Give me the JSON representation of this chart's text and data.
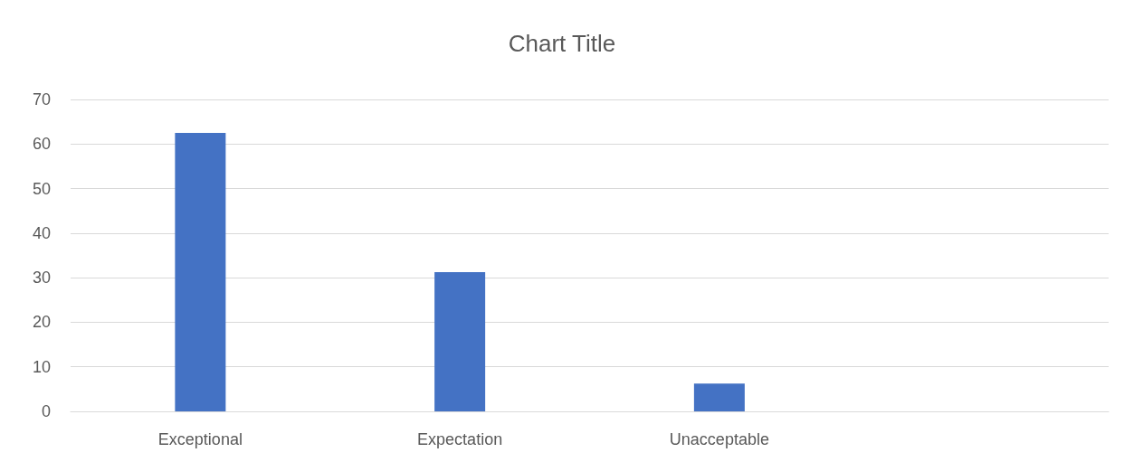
{
  "chart_data": {
    "type": "bar",
    "title": "Chart Title",
    "categories": [
      "Exceptional",
      "Expectation",
      "Unacceptable",
      null
    ],
    "values": [
      62.5,
      31.25,
      6.25,
      null
    ],
    "color": "#4472c4",
    "ylim": [
      0,
      70
    ],
    "yticks": [
      0,
      10,
      20,
      30,
      40,
      50,
      60,
      70
    ],
    "grid": "y"
  }
}
